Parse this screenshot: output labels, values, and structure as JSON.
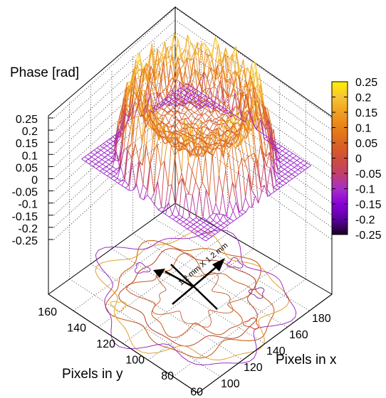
{
  "chart_data": {
    "type": "surface3d",
    "zlabel": "Phase [rad]",
    "xlabel": "Pixels in x",
    "ylabel": "Pixels in y",
    "z_ticks": [
      "0.25",
      "0.2",
      "0.15",
      "0.1",
      "0.05",
      "0",
      "-0.05",
      "-0.1",
      "-0.15",
      "-0.2",
      "-0.25"
    ],
    "zlim": [
      -0.25,
      0.25
    ],
    "x_ticks": [
      "100",
      "120",
      "140",
      "160",
      "180"
    ],
    "y_ticks": [
      "160",
      "140",
      "120",
      "100",
      "80",
      "60"
    ],
    "colorbar": {
      "ticks": [
        "0.25",
        "0.2",
        "0.15",
        "0.1",
        "0.05",
        "0",
        "-0.05",
        "-0.1",
        "-0.15",
        "-0.2",
        "-0.25"
      ],
      "range": [
        -0.25,
        0.25
      ],
      "colors": [
        "#1a0021",
        "#5a009e",
        "#8a00d8",
        "#a82ec8",
        "#c2406a",
        "#cf4f3a",
        "#dc6520",
        "#e8801a",
        "#f0a020",
        "#f7c436",
        "#fff000"
      ]
    },
    "annotation": "1.2 mm X 1.2 mm",
    "projection": "contour-base",
    "surface_shape": "dish: elevated rim (~0.1 to 0.25 rad), flat center (~0 to 0.05 rad), noisy edges down to about -0.1 rad"
  }
}
